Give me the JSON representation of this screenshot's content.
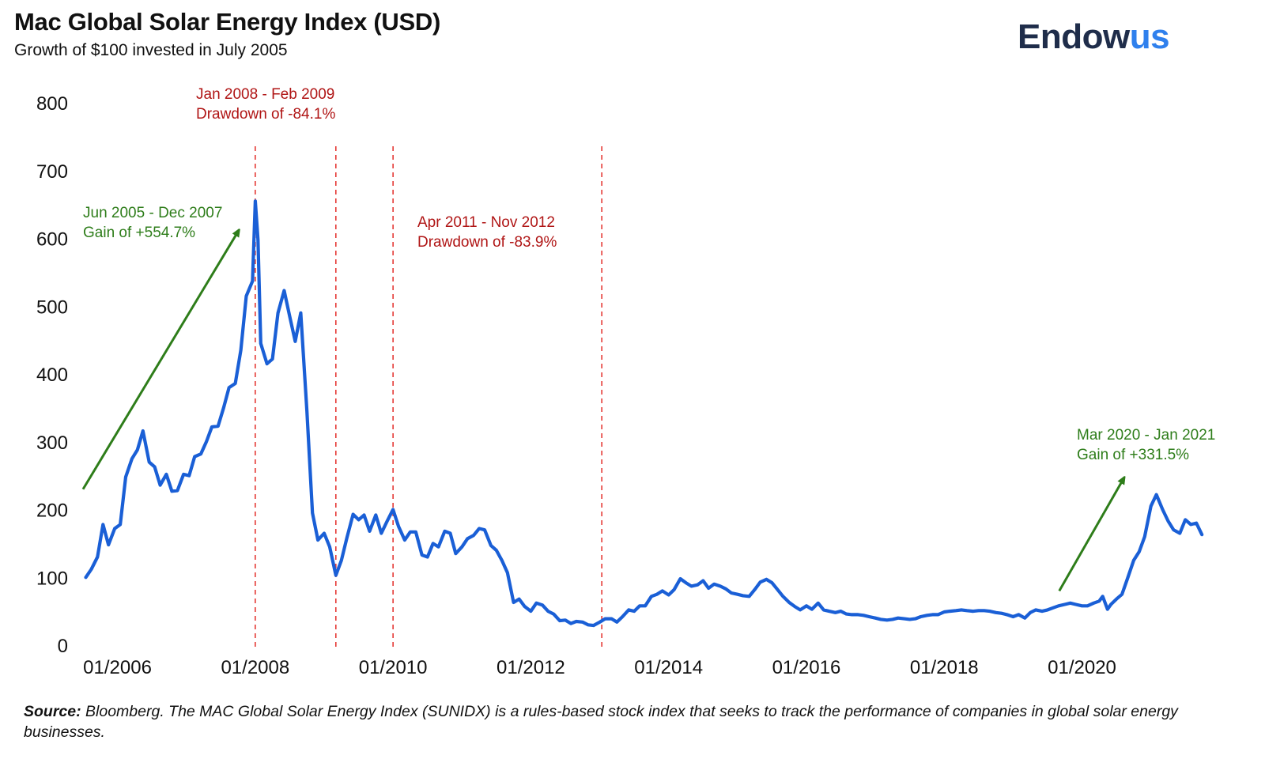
{
  "header": {
    "title": "Mac Global Solar Energy Index (USD)",
    "subtitle": "Growth of $100 invested in July 2005"
  },
  "logo": {
    "part1": "Endow",
    "part2": "us",
    "color_dark": "#1f2d4a",
    "color_accent": "#2f80ed"
  },
  "footer": {
    "source_label": "Source:",
    "source_text": " Bloomberg. The MAC Global Solar Energy Index (SUNIDX) is a rules-based stock index that seeks to track the performance of companies in global solar energy businesses."
  },
  "colors": {
    "line": "#1a5fd6",
    "drawdown": "#e53935",
    "gain": "#2e7d1a",
    "drawdown_text": "#b01515"
  },
  "chart_data": {
    "type": "line",
    "title": "Mac Global Solar Energy Index (USD)",
    "subtitle": "Growth of $100 invested in July 2005",
    "ylim": [
      0,
      800
    ],
    "yticks": [
      0,
      100,
      200,
      300,
      400,
      500,
      600,
      700,
      800
    ],
    "xlim": [
      2005.5,
      2021.83
    ],
    "xticks": [
      {
        "value": 2006.0,
        "label": "01/2006"
      },
      {
        "value": 2008.0,
        "label": "01/2008"
      },
      {
        "value": 2010.0,
        "label": "01/2010"
      },
      {
        "value": 2012.0,
        "label": "01/2012"
      },
      {
        "value": 2014.0,
        "label": "01/2014"
      },
      {
        "value": 2016.0,
        "label": "01/2016"
      },
      {
        "value": 2018.0,
        "label": "01/2018"
      },
      {
        "value": 2020.0,
        "label": "01/2020"
      }
    ],
    "grid": false,
    "series": [
      {
        "color": "#1a5fd6",
        "points": [
          [
            2005.54,
            100
          ],
          [
            2005.62,
            112
          ],
          [
            2005.71,
            130
          ],
          [
            2005.79,
            178
          ],
          [
            2005.87,
            148
          ],
          [
            2005.96,
            172
          ],
          [
            2006.04,
            178
          ],
          [
            2006.12,
            248
          ],
          [
            2006.21,
            275
          ],
          [
            2006.29,
            288
          ],
          [
            2006.37,
            316
          ],
          [
            2006.46,
            270
          ],
          [
            2006.54,
            263
          ],
          [
            2006.62,
            236
          ],
          [
            2006.71,
            252
          ],
          [
            2006.79,
            227
          ],
          [
            2006.87,
            228
          ],
          [
            2006.96,
            252
          ],
          [
            2007.04,
            250
          ],
          [
            2007.12,
            278
          ],
          [
            2007.21,
            282
          ],
          [
            2007.29,
            300
          ],
          [
            2007.37,
            322
          ],
          [
            2007.46,
            323
          ],
          [
            2007.54,
            350
          ],
          [
            2007.62,
            380
          ],
          [
            2007.71,
            386
          ],
          [
            2007.79,
            435
          ],
          [
            2007.87,
            515
          ],
          [
            2007.96,
            537
          ],
          [
            2008.0,
            655
          ],
          [
            2008.04,
            598
          ],
          [
            2008.08,
            445
          ],
          [
            2008.17,
            415
          ],
          [
            2008.25,
            422
          ],
          [
            2008.33,
            490
          ],
          [
            2008.42,
            523
          ],
          [
            2008.5,
            485
          ],
          [
            2008.58,
            448
          ],
          [
            2008.66,
            490
          ],
          [
            2008.75,
            345
          ],
          [
            2008.83,
            195
          ],
          [
            2008.91,
            155
          ],
          [
            2009.0,
            165
          ],
          [
            2009.08,
            145
          ],
          [
            2009.17,
            103
          ],
          [
            2009.25,
            125
          ],
          [
            2009.33,
            158
          ],
          [
            2009.42,
            193
          ],
          [
            2009.5,
            185
          ],
          [
            2009.58,
            192
          ],
          [
            2009.66,
            168
          ],
          [
            2009.75,
            192
          ],
          [
            2009.83,
            165
          ],
          [
            2009.91,
            182
          ],
          [
            2010.0,
            200
          ],
          [
            2010.08,
            175
          ],
          [
            2010.17,
            155
          ],
          [
            2010.25,
            167
          ],
          [
            2010.33,
            167
          ],
          [
            2010.42,
            133
          ],
          [
            2010.5,
            130
          ],
          [
            2010.58,
            150
          ],
          [
            2010.66,
            145
          ],
          [
            2010.75,
            168
          ],
          [
            2010.83,
            165
          ],
          [
            2010.91,
            135
          ],
          [
            2011.0,
            145
          ],
          [
            2011.08,
            157
          ],
          [
            2011.17,
            162
          ],
          [
            2011.25,
            172
          ],
          [
            2011.33,
            170
          ],
          [
            2011.42,
            147
          ],
          [
            2011.5,
            140
          ],
          [
            2011.58,
            125
          ],
          [
            2011.66,
            107
          ],
          [
            2011.75,
            63
          ],
          [
            2011.83,
            68
          ],
          [
            2011.91,
            57
          ],
          [
            2012.0,
            50
          ],
          [
            2012.08,
            62
          ],
          [
            2012.17,
            59
          ],
          [
            2012.25,
            50
          ],
          [
            2012.33,
            46
          ],
          [
            2012.42,
            36
          ],
          [
            2012.5,
            37
          ],
          [
            2012.58,
            32
          ],
          [
            2012.66,
            35
          ],
          [
            2012.75,
            34
          ],
          [
            2012.83,
            30
          ],
          [
            2012.91,
            29
          ],
          [
            2013.0,
            34
          ],
          [
            2013.08,
            39
          ],
          [
            2013.17,
            39
          ],
          [
            2013.25,
            34
          ],
          [
            2013.33,
            42
          ],
          [
            2013.42,
            52
          ],
          [
            2013.5,
            50
          ],
          [
            2013.58,
            58
          ],
          [
            2013.66,
            58
          ],
          [
            2013.75,
            72
          ],
          [
            2013.83,
            75
          ],
          [
            2013.91,
            80
          ],
          [
            2014.0,
            74
          ],
          [
            2014.08,
            82
          ],
          [
            2014.17,
            98
          ],
          [
            2014.25,
            92
          ],
          [
            2014.33,
            87
          ],
          [
            2014.42,
            89
          ],
          [
            2014.5,
            95
          ],
          [
            2014.58,
            84
          ],
          [
            2014.66,
            90
          ],
          [
            2014.75,
            87
          ],
          [
            2014.83,
            83
          ],
          [
            2014.91,
            77
          ],
          [
            2015.0,
            75
          ],
          [
            2015.08,
            73
          ],
          [
            2015.17,
            72
          ],
          [
            2015.25,
            82
          ],
          [
            2015.33,
            93
          ],
          [
            2015.42,
            97
          ],
          [
            2015.5,
            92
          ],
          [
            2015.58,
            82
          ],
          [
            2015.66,
            72
          ],
          [
            2015.75,
            63
          ],
          [
            2015.83,
            57
          ],
          [
            2015.91,
            52
          ],
          [
            2016.0,
            58
          ],
          [
            2016.08,
            53
          ],
          [
            2016.17,
            62
          ],
          [
            2016.25,
            52
          ],
          [
            2016.33,
            50
          ],
          [
            2016.42,
            48
          ],
          [
            2016.5,
            50
          ],
          [
            2016.58,
            46
          ],
          [
            2016.66,
            45
          ],
          [
            2016.75,
            45
          ],
          [
            2016.83,
            44
          ],
          [
            2016.91,
            42
          ],
          [
            2017.0,
            40
          ],
          [
            2017.08,
            38
          ],
          [
            2017.17,
            37
          ],
          [
            2017.25,
            38
          ],
          [
            2017.33,
            40
          ],
          [
            2017.42,
            39
          ],
          [
            2017.5,
            38
          ],
          [
            2017.58,
            39
          ],
          [
            2017.66,
            42
          ],
          [
            2017.75,
            44
          ],
          [
            2017.83,
            45
          ],
          [
            2017.91,
            45
          ],
          [
            2018.0,
            49
          ],
          [
            2018.08,
            50
          ],
          [
            2018.17,
            51
          ],
          [
            2018.25,
            52
          ],
          [
            2018.33,
            51
          ],
          [
            2018.42,
            50
          ],
          [
            2018.5,
            51
          ],
          [
            2018.58,
            51
          ],
          [
            2018.66,
            50
          ],
          [
            2018.75,
            48
          ],
          [
            2018.83,
            47
          ],
          [
            2018.91,
            45
          ],
          [
            2019.0,
            42
          ],
          [
            2019.08,
            45
          ],
          [
            2019.17,
            40
          ],
          [
            2019.25,
            48
          ],
          [
            2019.33,
            52
          ],
          [
            2019.42,
            50
          ],
          [
            2019.5,
            52
          ],
          [
            2019.58,
            55
          ],
          [
            2019.66,
            58
          ],
          [
            2019.75,
            60
          ],
          [
            2019.83,
            62
          ],
          [
            2019.91,
            60
          ],
          [
            2020.0,
            58
          ],
          [
            2020.08,
            58
          ],
          [
            2020.17,
            62
          ],
          [
            2020.25,
            65
          ],
          [
            2020.3,
            72
          ],
          [
            2020.37,
            53
          ],
          [
            2020.42,
            60
          ],
          [
            2020.5,
            68
          ],
          [
            2020.58,
            75
          ],
          [
            2020.66,
            98
          ],
          [
            2020.75,
            125
          ],
          [
            2020.83,
            138
          ],
          [
            2020.91,
            160
          ],
          [
            2021.0,
            205
          ],
          [
            2021.08,
            222
          ],
          [
            2021.17,
            200
          ],
          [
            2021.25,
            183
          ],
          [
            2021.33,
            170
          ],
          [
            2021.42,
            165
          ],
          [
            2021.5,
            185
          ],
          [
            2021.58,
            178
          ],
          [
            2021.66,
            180
          ],
          [
            2021.74,
            163
          ]
        ]
      }
    ],
    "vlines": [
      2008.0,
      2009.17,
      2010.0,
      2013.03
    ],
    "annotations": [
      {
        "color": "red",
        "lines": [
          "Jan 2008 - Feb 2009",
          "Drawdown of -84.1%"
        ]
      },
      {
        "color": "red",
        "lines": [
          "Apr 2011 - Nov 2012",
          "Drawdown of -83.9%"
        ]
      },
      {
        "color": "green",
        "lines": [
          "Jun 2005 - Dec 2007",
          "Gain of +554.7%"
        ]
      },
      {
        "color": "green",
        "lines": [
          "Mar 2020 - Jan 2021",
          "Gain of +331.5%"
        ]
      }
    ],
    "arrows": [
      {
        "from": [
          2005.5,
          230
        ],
        "to": [
          2007.75,
          610
        ]
      },
      {
        "from": [
          2019.67,
          80
        ],
        "to": [
          2020.6,
          245
        ]
      }
    ]
  }
}
